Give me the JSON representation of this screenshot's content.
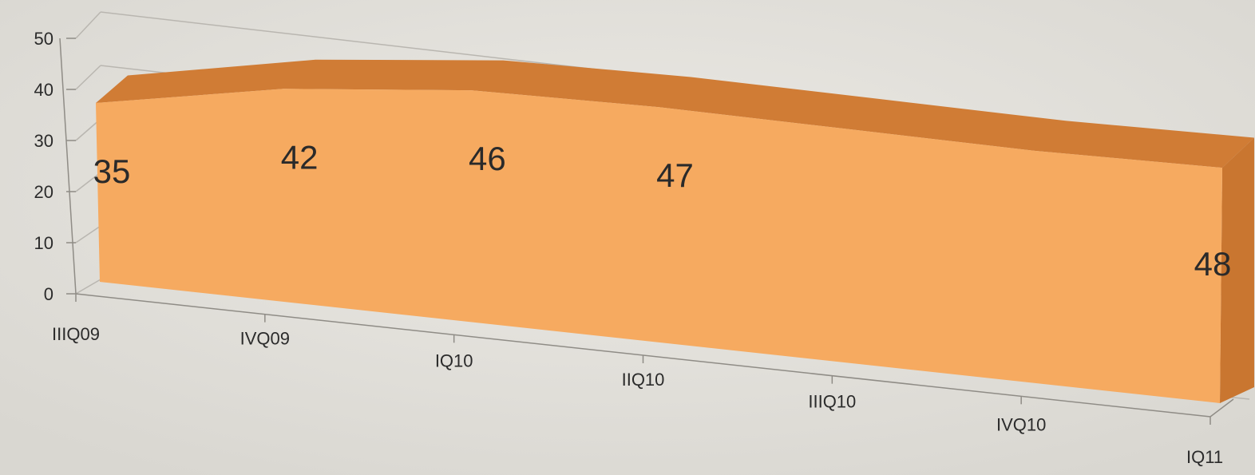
{
  "chart_data": {
    "type": "area",
    "title": "",
    "xlabel": "",
    "ylabel": "",
    "ylim": [
      0,
      50
    ],
    "yticks": [
      "0",
      "10",
      "20",
      "30",
      "40",
      "50"
    ],
    "categories": [
      "IIIQ09",
      "IVQ09",
      "IQ10",
      "IIQ10",
      "IIIQ10",
      "IVQ10",
      "IQ11"
    ],
    "values": [
      35,
      42,
      46,
      47,
      47,
      47,
      48
    ],
    "data_labels": [
      "35",
      "42",
      "46",
      "47",
      "",
      "",
      "48"
    ],
    "grid": true,
    "legend": "none",
    "three_d": true,
    "colors": {
      "front": "#f6aa60",
      "top": "#d07c35",
      "side": "#c97630",
      "gridline": "#b9b6b0",
      "axis": "#8f8c86"
    }
  }
}
